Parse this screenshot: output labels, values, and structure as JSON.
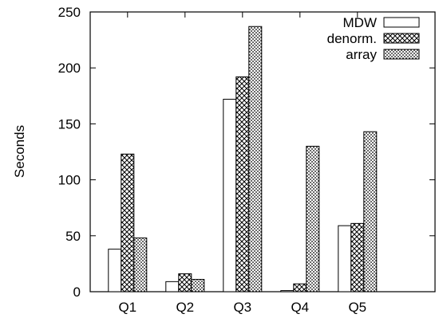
{
  "chart_data": {
    "type": "bar",
    "title": "",
    "xlabel": "",
    "ylabel": "Seconds",
    "ylim": [
      0,
      250
    ],
    "yticks": [
      0,
      50,
      100,
      150,
      200,
      250
    ],
    "categories": [
      "Q1",
      "Q2",
      "Q3",
      "Q4",
      "Q5"
    ],
    "series": [
      {
        "name": "MDW",
        "pattern": "solid-white",
        "values": [
          38,
          9,
          172,
          1,
          59
        ]
      },
      {
        "name": "denorm.",
        "pattern": "crosshatch",
        "values": [
          123,
          16,
          192,
          7,
          61
        ]
      },
      {
        "name": "array",
        "pattern": "dotted-grid",
        "values": [
          48,
          11,
          237,
          130,
          143
        ]
      }
    ],
    "legend_position": "top-right",
    "grid": false,
    "colors": {
      "bar_fill": "#ffffff",
      "stroke": "#000000"
    }
  }
}
